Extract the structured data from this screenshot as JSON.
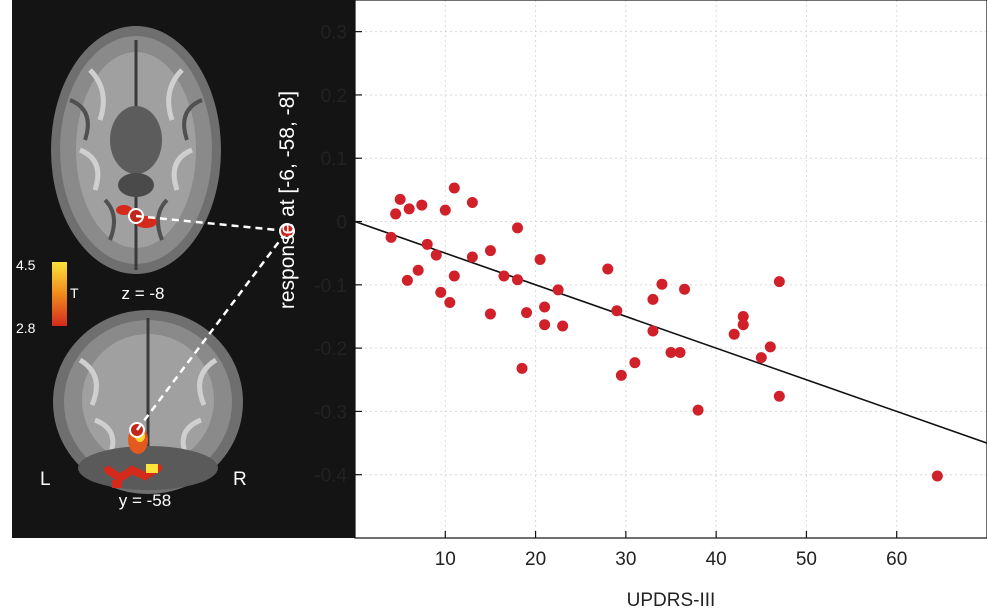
{
  "brain_panel": {
    "colorbar_max": "4.5",
    "colorbar_min": "2.8",
    "colorbar_label": "T",
    "axial_slice_label": "z = -8",
    "coronal_slice_label": "y = -58",
    "left_marker": "L",
    "right_marker": "R",
    "colors": {
      "background": "#141414",
      "blob_low": "#d42a1c",
      "blob_high": "#ffe23a",
      "marker": "#ffffff"
    }
  },
  "chart_data": {
    "type": "scatter",
    "xlabel": "UPDRS-III",
    "ylabel": "response at [-6, -58, -8]",
    "xlim": [
      0,
      70
    ],
    "ylim": [
      -0.5,
      0.35
    ],
    "xticks": [
      10,
      20,
      30,
      40,
      50,
      60
    ],
    "xtick_labels": [
      "10",
      "20",
      "30",
      "40",
      "50",
      "60"
    ],
    "yticks": [
      0.3,
      0.2,
      0.1,
      0,
      -0.1,
      -0.2,
      -0.3,
      -0.4
    ],
    "ytick_labels": [
      "0.3",
      "0.2",
      "0.1",
      "0",
      "-0.1",
      "-0.2",
      "-0.3",
      "-0.4"
    ],
    "grid": true,
    "point_color": "#d0202a",
    "fit_line": {
      "x": [
        0,
        70
      ],
      "y": [
        0,
        -0.35
      ]
    },
    "highlight_point": {
      "x": -8,
      "y": 0
    },
    "points": [
      [
        4,
        -0.025
      ],
      [
        4.5,
        0.012
      ],
      [
        5,
        0.035
      ],
      [
        5.8,
        -0.093
      ],
      [
        6,
        0.02
      ],
      [
        7,
        -0.077
      ],
      [
        7.4,
        0.026
      ],
      [
        8,
        -0.036
      ],
      [
        9,
        -0.053
      ],
      [
        9.5,
        -0.112
      ],
      [
        10,
        0.018
      ],
      [
        10.5,
        -0.128
      ],
      [
        11,
        0.053
      ],
      [
        11,
        -0.086
      ],
      [
        13,
        0.03
      ],
      [
        13,
        -0.056
      ],
      [
        15,
        -0.046
      ],
      [
        15,
        -0.146
      ],
      [
        16.5,
        -0.086
      ],
      [
        18,
        -0.01
      ],
      [
        18,
        -0.092
      ],
      [
        18.5,
        -0.232
      ],
      [
        19,
        -0.144
      ],
      [
        20.5,
        -0.06
      ],
      [
        21,
        -0.135
      ],
      [
        21,
        -0.163
      ],
      [
        22.5,
        -0.108
      ],
      [
        23,
        -0.165
      ],
      [
        28,
        -0.075
      ],
      [
        29,
        -0.141
      ],
      [
        29.5,
        -0.243
      ],
      [
        31,
        -0.223
      ],
      [
        33,
        -0.123
      ],
      [
        33,
        -0.173
      ],
      [
        34,
        -0.099
      ],
      [
        35,
        -0.207
      ],
      [
        36,
        -0.207
      ],
      [
        36.5,
        -0.107
      ],
      [
        38,
        -0.298
      ],
      [
        42,
        -0.178
      ],
      [
        43,
        -0.15
      ],
      [
        43,
        -0.163
      ],
      [
        45,
        -0.215
      ],
      [
        46,
        -0.198
      ],
      [
        47,
        -0.095
      ],
      [
        47,
        -0.276
      ],
      [
        64.5,
        -0.402
      ]
    ]
  }
}
